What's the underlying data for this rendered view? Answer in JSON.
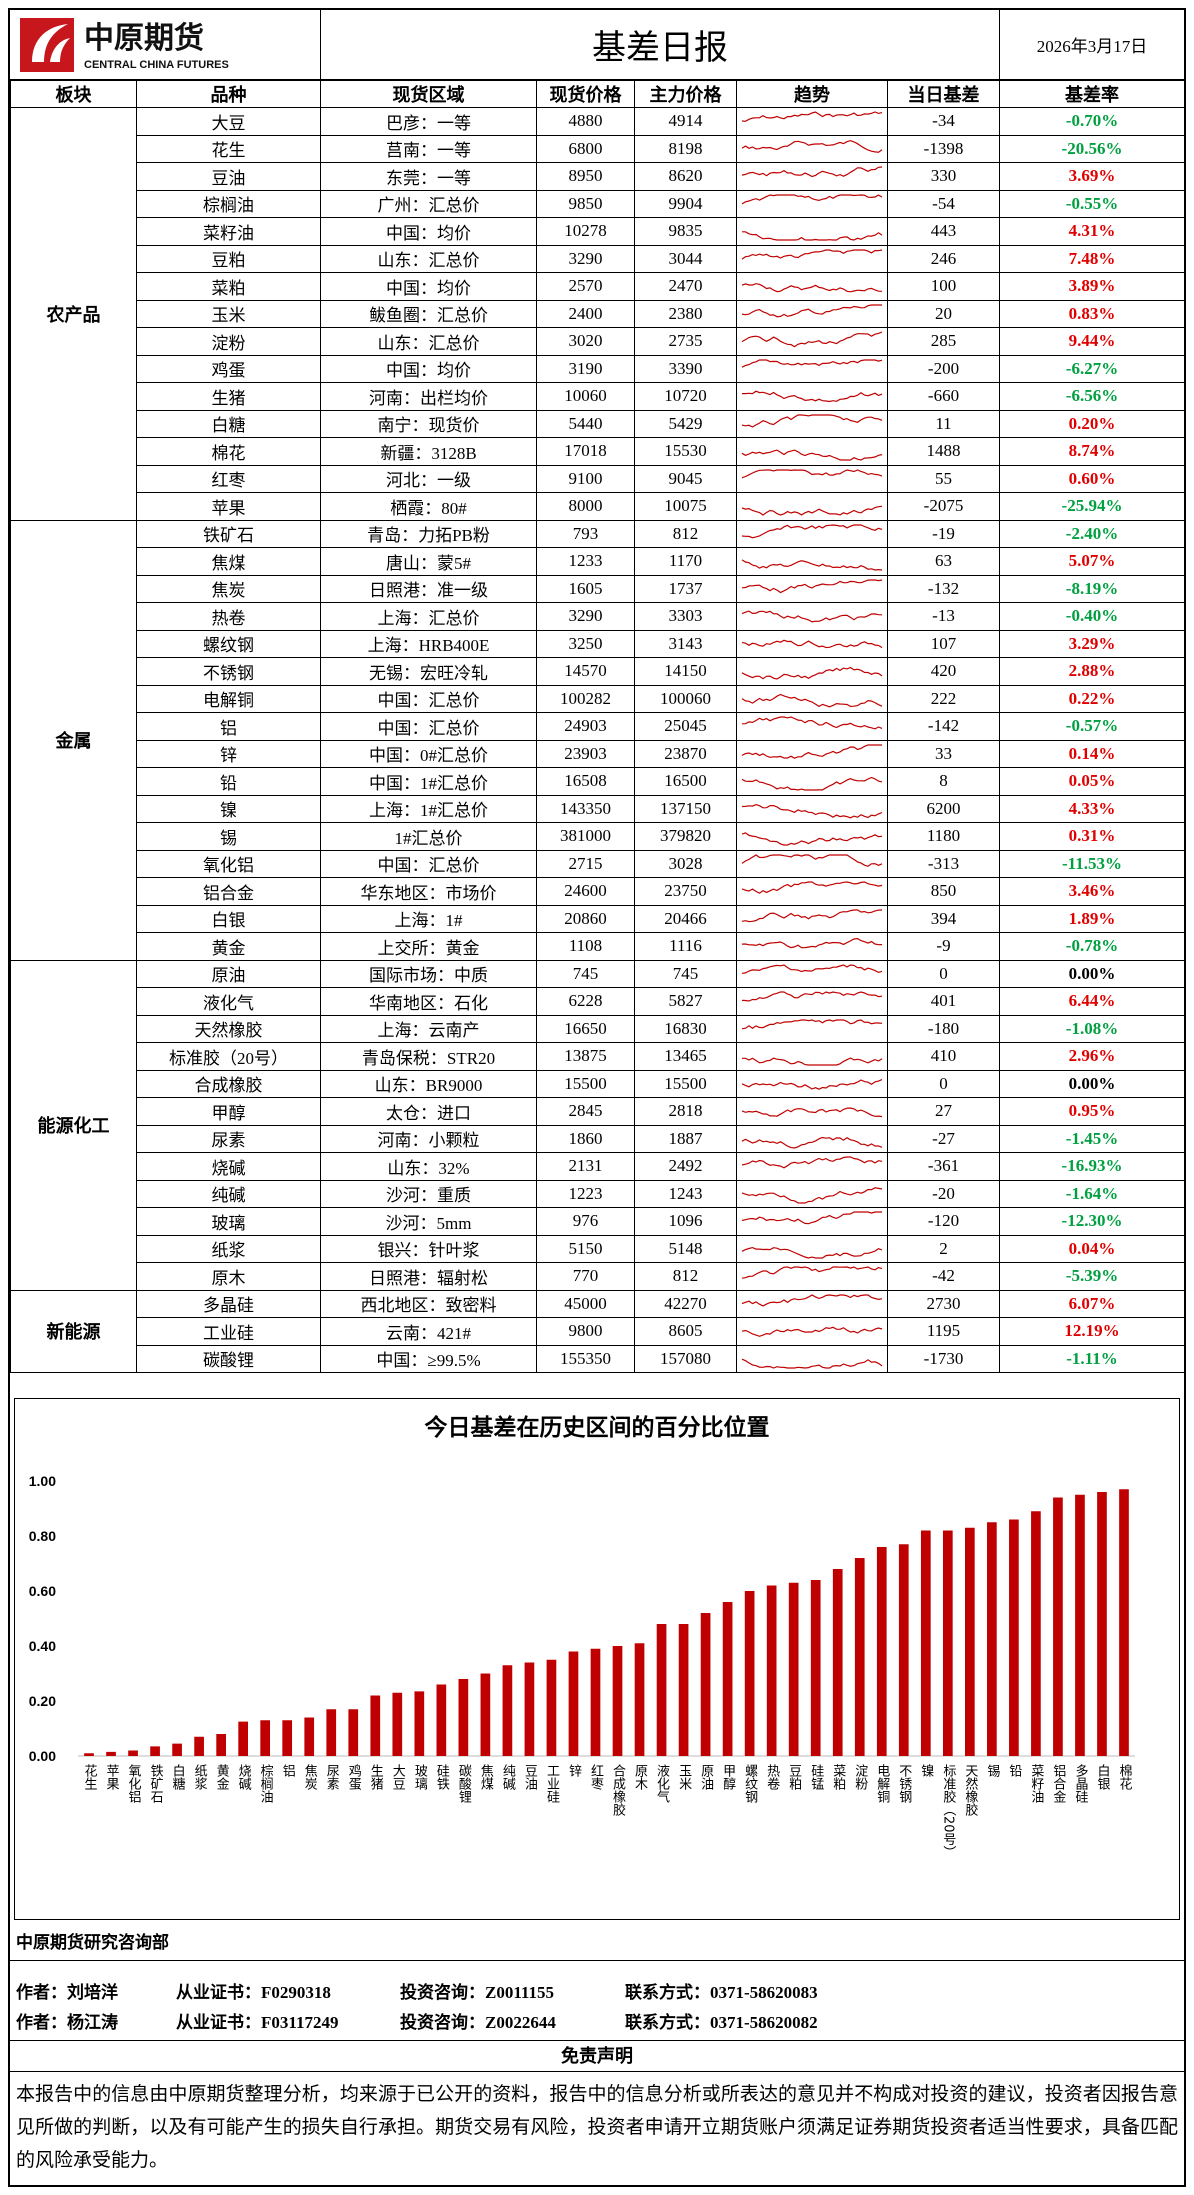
{
  "header": {
    "logo_cn": "中原期货",
    "logo_en": "CENTRAL CHINA FUTURES",
    "title": "基差日报",
    "date": "2026年3月17日"
  },
  "table": {
    "columns": [
      "板块",
      "品种",
      "现货区域",
      "现货价格",
      "主力价格",
      "趋势",
      "当日基差",
      "基差率"
    ],
    "sections": [
      {
        "name": "农产品",
        "rows": [
          [
            "大豆",
            "巴彦：一等",
            "4880",
            "4914",
            "-34",
            "-0.70%"
          ],
          [
            "花生",
            "莒南：一等",
            "6800",
            "8198",
            "-1398",
            "-20.56%"
          ],
          [
            "豆油",
            "东莞：一等",
            "8950",
            "8620",
            "330",
            "3.69%"
          ],
          [
            "棕榈油",
            "广州：汇总价",
            "9850",
            "9904",
            "-54",
            "-0.55%"
          ],
          [
            "菜籽油",
            "中国：均价",
            "10278",
            "9835",
            "443",
            "4.31%"
          ],
          [
            "豆粕",
            "山东：汇总价",
            "3290",
            "3044",
            "246",
            "7.48%"
          ],
          [
            "菜粕",
            "中国：均价",
            "2570",
            "2470",
            "100",
            "3.89%"
          ],
          [
            "玉米",
            "鲅鱼圈：汇总价",
            "2400",
            "2380",
            "20",
            "0.83%"
          ],
          [
            "淀粉",
            "山东：汇总价",
            "3020",
            "2735",
            "285",
            "9.44%"
          ],
          [
            "鸡蛋",
            "中国：均价",
            "3190",
            "3390",
            "-200",
            "-6.27%"
          ],
          [
            "生猪",
            "河南：出栏均价",
            "10060",
            "10720",
            "-660",
            "-6.56%"
          ],
          [
            "白糖",
            "南宁：现货价",
            "5440",
            "5429",
            "11",
            "0.20%"
          ],
          [
            "棉花",
            "新疆：3128B",
            "17018",
            "15530",
            "1488",
            "8.74%"
          ],
          [
            "红枣",
            "河北：一级",
            "9100",
            "9045",
            "55",
            "0.60%"
          ],
          [
            "苹果",
            "栖霞：80#",
            "8000",
            "10075",
            "-2075",
            "-25.94%"
          ]
        ]
      },
      {
        "name": "金属",
        "rows": [
          [
            "铁矿石",
            "青岛：力拓PB粉",
            "793",
            "812",
            "-19",
            "-2.40%"
          ],
          [
            "焦煤",
            "唐山：蒙5#",
            "1233",
            "1170",
            "63",
            "5.07%"
          ],
          [
            "焦炭",
            "日照港：准一级",
            "1605",
            "1737",
            "-132",
            "-8.19%"
          ],
          [
            "热卷",
            "上海：汇总价",
            "3290",
            "3303",
            "-13",
            "-0.40%"
          ],
          [
            "螺纹钢",
            "上海：HRB400E",
            "3250",
            "3143",
            "107",
            "3.29%"
          ],
          [
            "不锈钢",
            "无锡：宏旺冷轧",
            "14570",
            "14150",
            "420",
            "2.88%"
          ],
          [
            "电解铜",
            "中国：汇总价",
            "100282",
            "100060",
            "222",
            "0.22%"
          ],
          [
            "铝",
            "中国：汇总价",
            "24903",
            "25045",
            "-142",
            "-0.57%"
          ],
          [
            "锌",
            "中国：0#汇总价",
            "23903",
            "23870",
            "33",
            "0.14%"
          ],
          [
            "铅",
            "中国：1#汇总价",
            "16508",
            "16500",
            "8",
            "0.05%"
          ],
          [
            "镍",
            "上海：1#汇总价",
            "143350",
            "137150",
            "6200",
            "4.33%"
          ],
          [
            "锡",
            "1#汇总价",
            "381000",
            "379820",
            "1180",
            "0.31%"
          ],
          [
            "氧化铝",
            "中国：汇总价",
            "2715",
            "3028",
            "-313",
            "-11.53%"
          ],
          [
            "铝合金",
            "华东地区：市场价",
            "24600",
            "23750",
            "850",
            "3.46%"
          ],
          [
            "白银",
            "上海：1#",
            "20860",
            "20466",
            "394",
            "1.89%"
          ],
          [
            "黄金",
            "上交所：黄金",
            "1108",
            "1116",
            "-9",
            "-0.78%"
          ]
        ]
      },
      {
        "name": "能源化工",
        "rows": [
          [
            "原油",
            "国际市场：中质",
            "745",
            "745",
            "0",
            "0.00%"
          ],
          [
            "液化气",
            "华南地区：石化",
            "6228",
            "5827",
            "401",
            "6.44%"
          ],
          [
            "天然橡胶",
            "上海：云南产",
            "16650",
            "16830",
            "-180",
            "-1.08%"
          ],
          [
            "标准胶（20号）",
            "青岛保税：STR20",
            "13875",
            "13465",
            "410",
            "2.96%"
          ],
          [
            "合成橡胶",
            "山东：BR9000",
            "15500",
            "15500",
            "0",
            "0.00%"
          ],
          [
            "甲醇",
            "太仓：进口",
            "2845",
            "2818",
            "27",
            "0.95%"
          ],
          [
            "尿素",
            "河南：小颗粒",
            "1860",
            "1887",
            "-27",
            "-1.45%"
          ],
          [
            "烧碱",
            "山东：32%",
            "2131",
            "2492",
            "-361",
            "-16.93%"
          ],
          [
            "纯碱",
            "沙河：重质",
            "1223",
            "1243",
            "-20",
            "-1.64%"
          ],
          [
            "玻璃",
            "沙河：5mm",
            "976",
            "1096",
            "-120",
            "-12.30%"
          ],
          [
            "纸浆",
            "银兴：针叶浆",
            "5150",
            "5148",
            "2",
            "0.04%"
          ],
          [
            "原木",
            "日照港：辐射松",
            "770",
            "812",
            "-42",
            "-5.39%"
          ]
        ]
      },
      {
        "name": "新能源",
        "rows": [
          [
            "多晶硅",
            "西北地区：致密料",
            "45000",
            "42270",
            "2730",
            "6.07%"
          ],
          [
            "工业硅",
            "云南：421#",
            "9800",
            "8605",
            "1195",
            "12.19%"
          ],
          [
            "碳酸锂",
            "中国：≥99.5%",
            "155350",
            "157080",
            "-1730",
            "-1.11%"
          ]
        ]
      }
    ]
  },
  "chart_data": {
    "type": "bar",
    "title": "今日基差在历史区间的百分比位置",
    "categories": [
      "花生",
      "苹果",
      "氧化铝",
      "铁矿石",
      "白糖",
      "纸浆",
      "黄金",
      "烧碱",
      "棕榈油",
      "铝",
      "焦炭",
      "尿素",
      "鸡蛋",
      "生猪",
      "大豆",
      "玻璃",
      "硅铁",
      "碳酸锂",
      "焦煤",
      "纯碱",
      "豆油",
      "工业硅",
      "锌",
      "红枣",
      "合成橡胶",
      "原木",
      "液化气",
      "玉米",
      "原油",
      "甲醇",
      "螺纹钢",
      "热卷",
      "豆粕",
      "硅锰",
      "菜粕",
      "淀粉",
      "电解铜",
      "不锈钢",
      "镍",
      "标准胶（20号）",
      "天然橡胶",
      "锡",
      "铅",
      "菜籽油",
      "铝合金",
      "多晶硅",
      "白银",
      "棉花"
    ],
    "values": [
      0.01,
      0.015,
      0.02,
      0.035,
      0.045,
      0.07,
      0.08,
      0.125,
      0.13,
      0.13,
      0.14,
      0.17,
      0.17,
      0.22,
      0.23,
      0.235,
      0.26,
      0.28,
      0.3,
      0.33,
      0.34,
      0.35,
      0.38,
      0.39,
      0.4,
      0.41,
      0.48,
      0.48,
      0.52,
      0.56,
      0.6,
      0.62,
      0.63,
      0.64,
      0.68,
      0.72,
      0.76,
      0.77,
      0.82,
      0.82,
      0.83,
      0.85,
      0.86,
      0.89,
      0.94,
      0.95,
      0.96,
      0.97
    ],
    "color": "#c00000",
    "ylim": [
      0,
      1
    ],
    "yticks": [
      {
        "value": 0,
        "label": "0.00"
      },
      {
        "value": 0.2,
        "label": "0.20"
      },
      {
        "value": 0.4,
        "label": "0.40"
      },
      {
        "value": 0.6,
        "label": "0.60"
      },
      {
        "value": 0.8,
        "label": "0.80"
      },
      {
        "value": 1,
        "label": "1.00"
      }
    ],
    "grid": false
  },
  "footer": {
    "department": "中原期货研究咨询部",
    "authors": [
      [
        "作者：刘培洋",
        "从业证书：F0290318",
        "投资咨询：Z0011155",
        "联系方式：0371-58620083"
      ],
      [
        "作者：杨江涛",
        "从业证书：F03117249",
        "投资咨询：Z0022644",
        "联系方式：0371-58620082"
      ]
    ],
    "disclaimer_title": "免责声明",
    "disclaimer": "本报告中的信息由中原期货整理分析，均来源于已公开的资料，报告中的信息分析或所表达的意见并不构成对投资的建议，投资者因报告意见所做的判断，以及有可能产生的损失自行承担。期货交易有风险，投资者申请开立期货账户须满足证券期货投资者适当性要求，具备匹配的风险承受能力。"
  }
}
